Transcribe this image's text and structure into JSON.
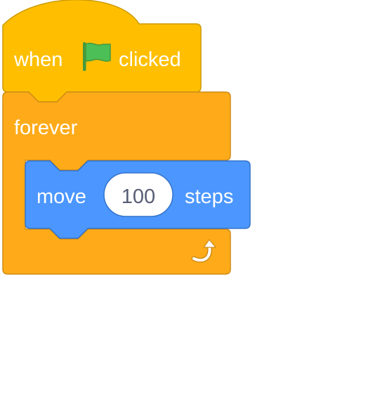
{
  "script": {
    "hat_block": {
      "prefix": "when",
      "flag_icon": "green-flag-icon",
      "suffix": "clicked",
      "color": "#FFBF00",
      "border_color": "#CC9900"
    },
    "forever_block": {
      "label": "forever",
      "loop_icon": "rotate-arrow-icon",
      "color": "#FFAB19",
      "border_color": "#CF8B17"
    },
    "move_block": {
      "prefix": "move",
      "steps_value": "100",
      "suffix": "steps",
      "color": "#4C97FF",
      "border_color": "#3373CC"
    },
    "colors": {
      "flag": "#4CBF56",
      "flag_border": "#45993D",
      "input_text": "#575E75"
    }
  }
}
